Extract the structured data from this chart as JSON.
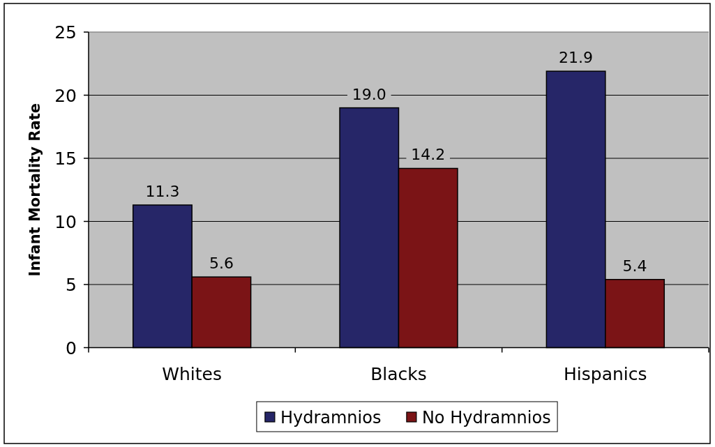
{
  "chart_data": {
    "type": "bar",
    "ylabel": "Infant Mortality Rate",
    "categories": [
      "Whites",
      "Blacks",
      "Hispanics"
    ],
    "series": [
      {
        "name": "Hydramnios",
        "color": "#262668",
        "values": [
          11.3,
          19.0,
          21.9
        ],
        "value_labels": [
          "11.3",
          "19.0",
          "21.9"
        ]
      },
      {
        "name": "No Hydramnios",
        "color": "#7b1416",
        "values": [
          5.6,
          14.2,
          5.4
        ],
        "value_labels": [
          "5.6",
          "14.2",
          "5.4"
        ]
      }
    ],
    "ylim": [
      0,
      25
    ],
    "yticks": [
      0,
      5,
      10,
      15,
      20,
      25
    ],
    "grid": "y",
    "legend": "bottom"
  }
}
